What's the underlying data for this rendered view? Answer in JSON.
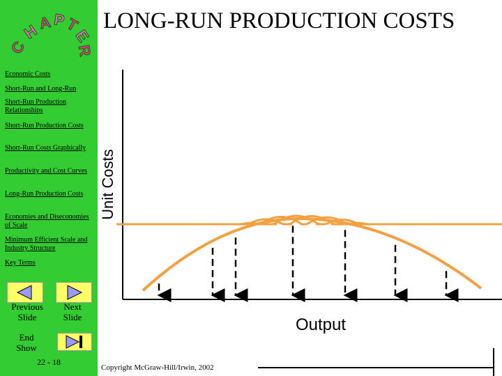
{
  "logo": {
    "letters": [
      "C",
      "H",
      "A",
      "P",
      "T",
      "E",
      "R"
    ]
  },
  "title": "LONG-RUN PRODUCTION COSTS",
  "nav": {
    "links": [
      "Economic Costs",
      "Short-Run and Long-Run",
      "Short-Run Production Relationships",
      "Short-Run Production Costs",
      "Short-Run Costs Graphically",
      "Productivity and Cost Curves",
      "Long-Run Production Costs",
      "Economies and Diseconomies of Scale",
      "Minimum Efficient Scale and Industry Structure",
      "Key Terms"
    ]
  },
  "buttons": {
    "previous": "Previous Slide",
    "next": "Next Slide",
    "end": "End Show"
  },
  "slide_number": "22 - 18",
  "diagram": {
    "y_axis_label": "Unit Costs",
    "x_axis_label": "Output"
  },
  "footer": {
    "copyright": "Copyright McGraw-Hill/Irwin, 2002"
  }
}
